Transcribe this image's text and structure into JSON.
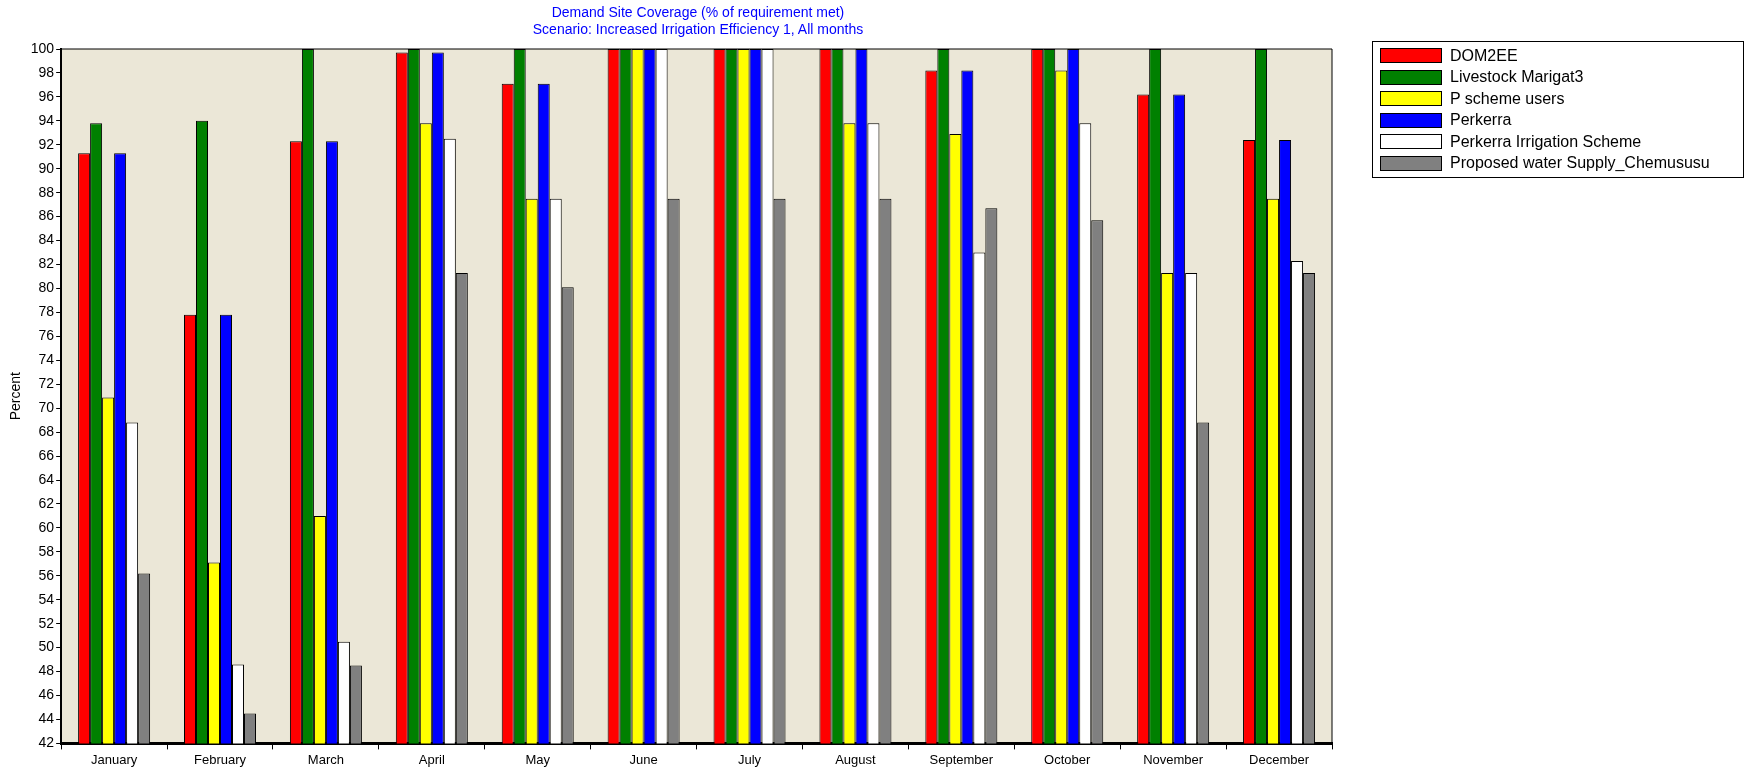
{
  "chart_data": {
    "type": "bar",
    "title": "Demand Site Coverage (% of requirement met)",
    "subtitle": "Scenario: Increased Irrigation Efficiency 1,  All months",
    "ylabel": "Percent",
    "categories": [
      "January",
      "February",
      "March",
      "April",
      "May",
      "June",
      "July",
      "August",
      "September",
      "October",
      "November",
      "December"
    ],
    "series": [
      {
        "name": "DOM2EE",
        "color": "#ff0000",
        "values": [
          91.3,
          77.8,
          92.3,
          99.7,
          97.1,
          100,
          100,
          100,
          98.2,
          100,
          96.2,
          92.4
        ]
      },
      {
        "name": "Livestock Marigat3",
        "color": "#008000",
        "values": [
          93.8,
          94.0,
          100,
          100,
          100,
          100,
          100,
          100,
          100,
          100,
          100,
          100
        ]
      },
      {
        "name": "P scheme users",
        "color": "#ffff00",
        "values": [
          70.9,
          57.1,
          61.0,
          93.8,
          87.5,
          100,
          100,
          93.8,
          92.9,
          98.2,
          81.3,
          87.5
        ]
      },
      {
        "name": "Perkerra",
        "color": "#0000ff",
        "values": [
          91.3,
          77.8,
          92.3,
          99.7,
          97.1,
          100,
          100,
          100,
          98.2,
          100,
          96.2,
          92.4
        ]
      },
      {
        "name": "Perkerra Irrigation Scheme",
        "color": "#ffffff",
        "values": [
          68.8,
          48.6,
          50.5,
          92.5,
          87.5,
          100,
          100,
          93.8,
          83.0,
          93.8,
          81.3,
          82.3
        ]
      },
      {
        "name": "Proposed water Supply_Chemususu",
        "color": "#808080",
        "values": [
          56.2,
          44.5,
          48.5,
          81.3,
          80.1,
          87.5,
          87.5,
          87.5,
          86.7,
          85.7,
          68.8,
          81.3
        ]
      }
    ],
    "ylim": [
      42,
      100
    ],
    "yticks": [
      42,
      44,
      46,
      48,
      50,
      52,
      54,
      56,
      58,
      60,
      62,
      64,
      66,
      68,
      70,
      72,
      74,
      76,
      78,
      80,
      82,
      84,
      86,
      88,
      90,
      92,
      94,
      96,
      98,
      100
    ],
    "grid": false,
    "legend": "right"
  }
}
